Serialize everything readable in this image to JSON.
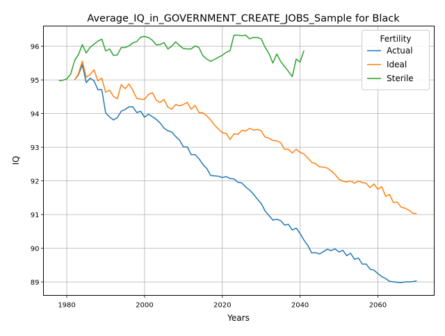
{
  "chart_data": {
    "type": "line",
    "title": "Average_IQ_in_GOVERNMENT_CREATE_JOBS_Sample for Black",
    "xlabel": "Years",
    "ylabel": "IQ",
    "xlim": [
      1974,
      2074.5
    ],
    "ylim": [
      88.6,
      96.6
    ],
    "x_ticks": [
      1980,
      2000,
      2020,
      2040,
      2060
    ],
    "y_ticks": [
      89,
      90,
      91,
      92,
      93,
      94,
      95,
      96
    ],
    "grid": true,
    "legend": {
      "title": "Fertility",
      "placement": "top-right"
    },
    "series": [
      {
        "name": "Actual",
        "color": "#1f77b4",
        "x": [
          1982,
          1983,
          1984,
          1985,
          1986,
          1987,
          1988,
          1989,
          1990,
          1991,
          1992,
          1993,
          1994,
          1995,
          1996,
          1997,
          1998,
          1999,
          2000,
          2001,
          2002,
          2003,
          2004,
          2005,
          2006,
          2007,
          2008,
          2009,
          2010,
          2011,
          2012,
          2013,
          2014,
          2015,
          2016,
          2017,
          2018,
          2019,
          2020,
          2021,
          2022,
          2023,
          2024,
          2025,
          2026,
          2027,
          2028,
          2029,
          2030,
          2031,
          2032,
          2033,
          2034,
          2035,
          2036,
          2037,
          2038,
          2039,
          2040,
          2041,
          2042,
          2043,
          2044,
          2045,
          2046,
          2047,
          2048,
          2049,
          2050,
          2051,
          2052,
          2053,
          2054,
          2055,
          2056,
          2057,
          2058,
          2059,
          2060,
          2061,
          2062,
          2063,
          2064,
          2065,
          2066,
          2067,
          2068,
          2069,
          2070
        ],
        "values": [
          95.0,
          95.15,
          95.45,
          94.92,
          95.05,
          94.97,
          94.71,
          94.71,
          94.02,
          93.9,
          93.81,
          93.88,
          94.07,
          94.12,
          94.2,
          94.2,
          94.03,
          94.07,
          93.89,
          93.98,
          93.91,
          93.83,
          93.72,
          93.57,
          93.49,
          93.45,
          93.32,
          93.21,
          93.01,
          93.01,
          92.78,
          92.78,
          92.66,
          92.49,
          92.37,
          92.16,
          92.15,
          92.14,
          92.1,
          92.13,
          92.07,
          92.06,
          91.96,
          91.94,
          91.82,
          91.73,
          91.61,
          91.46,
          91.33,
          91.11,
          90.97,
          90.84,
          90.86,
          90.82,
          90.69,
          90.71,
          90.54,
          90.6,
          90.44,
          90.24,
          90.08,
          89.86,
          89.87,
          89.83,
          89.9,
          89.97,
          89.93,
          89.98,
          89.89,
          89.94,
          89.78,
          89.85,
          89.67,
          89.71,
          89.53,
          89.53,
          89.38,
          89.35,
          89.25,
          89.16,
          89.1,
          89.02,
          89.0,
          88.99,
          88.98,
          89.0,
          89.0,
          89.01,
          89.03
        ]
      },
      {
        "name": "Ideal",
        "color": "#ff7f0e",
        "x": [
          1982,
          1983,
          1984,
          1985,
          1986,
          1987,
          1988,
          1989,
          1990,
          1991,
          1992,
          1993,
          1994,
          1995,
          1996,
          1997,
          1998,
          1999,
          2000,
          2001,
          2002,
          2003,
          2004,
          2005,
          2006,
          2007,
          2008,
          2009,
          2010,
          2011,
          2012,
          2013,
          2014,
          2015,
          2016,
          2017,
          2018,
          2019,
          2020,
          2021,
          2022,
          2023,
          2024,
          2025,
          2026,
          2027,
          2028,
          2029,
          2030,
          2031,
          2032,
          2033,
          2034,
          2035,
          2036,
          2037,
          2038,
          2039,
          2040,
          2041,
          2042,
          2043,
          2044,
          2045,
          2046,
          2047,
          2048,
          2049,
          2050,
          2051,
          2052,
          2053,
          2054,
          2055,
          2056,
          2057,
          2058,
          2059,
          2060,
          2061,
          2062,
          2063,
          2064,
          2065,
          2066,
          2067,
          2068,
          2069,
          2070
        ],
        "values": [
          95.0,
          95.18,
          95.56,
          95.08,
          95.16,
          95.3,
          94.97,
          95.05,
          94.63,
          94.7,
          94.51,
          94.44,
          94.86,
          94.74,
          94.88,
          94.69,
          94.45,
          94.43,
          94.42,
          94.57,
          94.62,
          94.4,
          94.33,
          94.42,
          94.19,
          94.13,
          94.27,
          94.23,
          94.27,
          94.33,
          94.13,
          94.24,
          94.03,
          94.02,
          93.93,
          93.81,
          93.66,
          93.54,
          93.43,
          93.41,
          93.23,
          93.4,
          93.38,
          93.5,
          93.48,
          93.56,
          93.51,
          93.53,
          93.49,
          93.3,
          93.27,
          93.2,
          93.19,
          93.14,
          92.94,
          92.94,
          92.83,
          92.94,
          92.85,
          92.8,
          92.68,
          92.55,
          92.51,
          92.42,
          92.41,
          92.38,
          92.3,
          92.19,
          92.05,
          91.99,
          91.97,
          92.0,
          91.93,
          92.0,
          91.95,
          91.93,
          91.8,
          91.91,
          91.75,
          91.83,
          91.54,
          91.6,
          91.36,
          91.37,
          91.22,
          91.19,
          91.13,
          91.04,
          91.03
        ]
      },
      {
        "name": "Sterile",
        "color": "#2ca02c",
        "x": [
          1978,
          1979,
          1980,
          1981,
          1982,
          1983,
          1984,
          1985,
          1986,
          1987,
          1988,
          1989,
          1990,
          1991,
          1992,
          1993,
          1994,
          1995,
          1996,
          1997,
          1998,
          1999,
          2000,
          2001,
          2002,
          2003,
          2004,
          2005,
          2006,
          2007,
          2008,
          2009,
          2010,
          2011,
          2012,
          2013,
          2014,
          2015,
          2016,
          2017,
          2018,
          2019,
          2020,
          2021,
          2022,
          2023,
          2024,
          2025,
          2026,
          2027,
          2028,
          2029,
          2030,
          2031,
          2032,
          2033,
          2034,
          2035,
          2036,
          2037,
          2038,
          2039,
          2040,
          2041
        ],
        "values": [
          94.98,
          94.99,
          95.03,
          95.17,
          95.57,
          95.75,
          96.05,
          95.8,
          95.97,
          96.06,
          96.15,
          96.21,
          95.86,
          95.92,
          95.73,
          95.74,
          95.96,
          95.96,
          96.01,
          96.1,
          96.14,
          96.27,
          96.29,
          96.26,
          96.18,
          96.04,
          96.05,
          96.11,
          95.92,
          96.0,
          96.13,
          96.02,
          95.93,
          95.92,
          95.92,
          96.01,
          95.96,
          95.72,
          95.62,
          95.55,
          95.61,
          95.67,
          95.73,
          95.82,
          95.87,
          96.33,
          96.33,
          96.31,
          96.33,
          96.22,
          96.26,
          96.26,
          96.22,
          95.97,
          95.78,
          95.5,
          95.77,
          95.55,
          95.4,
          95.25,
          95.1,
          95.62,
          95.53,
          95.87
        ]
      }
    ]
  }
}
